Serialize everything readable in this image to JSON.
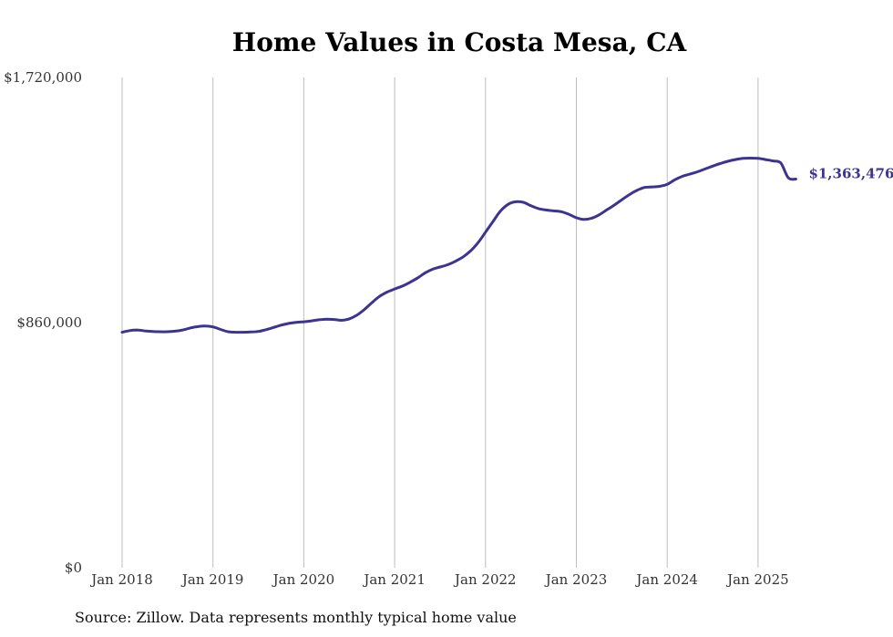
{
  "chart_data": {
    "type": "line",
    "title": "Home Values in Costa Mesa, CA",
    "xlabel": "",
    "ylabel": "",
    "x_ticks": [
      "Jan 2018",
      "Jan 2019",
      "Jan 2020",
      "Jan 2021",
      "Jan 2022",
      "Jan 2023",
      "Jan 2024",
      "Jan 2025"
    ],
    "y_ticks": [
      "$0",
      "$860,000",
      "$1,720,000"
    ],
    "ylim": [
      0,
      1720000
    ],
    "xlim": [
      "2018-01",
      "2025-06"
    ],
    "grid": "vertical",
    "line_color": "#3d3391",
    "end_label": "$1,363,476",
    "series": [
      {
        "x": [
          "2018-01",
          "2018-02",
          "2018-03",
          "2018-04",
          "2018-05",
          "2018-06",
          "2018-07",
          "2018-08",
          "2018-09",
          "2018-10",
          "2018-11",
          "2018-12",
          "2019-01",
          "2019-02",
          "2019-03",
          "2019-04",
          "2019-05",
          "2019-06",
          "2019-07",
          "2019-08",
          "2019-09",
          "2019-10",
          "2019-11",
          "2019-12",
          "2020-01",
          "2020-02",
          "2020-03",
          "2020-04",
          "2020-05",
          "2020-06",
          "2020-07",
          "2020-08",
          "2020-09",
          "2020-10",
          "2020-11",
          "2020-12",
          "2021-01",
          "2021-02",
          "2021-03",
          "2021-04",
          "2021-05",
          "2021-06",
          "2021-07",
          "2021-08",
          "2021-09",
          "2021-10",
          "2021-11",
          "2021-12",
          "2022-01",
          "2022-02",
          "2022-03",
          "2022-04",
          "2022-05",
          "2022-06",
          "2022-07",
          "2022-08",
          "2022-09",
          "2022-10",
          "2022-11",
          "2022-12",
          "2023-01",
          "2023-02",
          "2023-03",
          "2023-04",
          "2023-05",
          "2023-06",
          "2023-07",
          "2023-08",
          "2023-09",
          "2023-10",
          "2023-11",
          "2023-12",
          "2024-01",
          "2024-02",
          "2024-03",
          "2024-04",
          "2024-05",
          "2024-06",
          "2024-07",
          "2024-08",
          "2024-09",
          "2024-10",
          "2024-11",
          "2024-12",
          "2025-01",
          "2025-02",
          "2025-03",
          "2025-04",
          "2025-05",
          "2025-06"
        ],
        "values": [
          826000,
          832000,
          834000,
          831000,
          829000,
          828000,
          828000,
          830000,
          834000,
          841000,
          846000,
          848000,
          845000,
          836000,
          828000,
          826000,
          826000,
          827000,
          829000,
          835000,
          843000,
          851000,
          857000,
          861000,
          863000,
          866000,
          870000,
          872000,
          871000,
          868000,
          873000,
          886000,
          906000,
          930000,
          952000,
          967000,
          978000,
          988000,
          1001000,
          1016000,
          1034000,
          1047000,
          1055000,
          1063000,
          1075000,
          1090000,
          1111000,
          1140000,
          1177000,
          1215000,
          1252000,
          1275000,
          1284000,
          1282000,
          1270000,
          1260000,
          1255000,
          1252000,
          1249000,
          1240000,
          1228000,
          1222000,
          1226000,
          1238000,
          1255000,
          1272000,
          1291000,
          1309000,
          1324000,
          1334000,
          1336000,
          1338000,
          1345000,
          1361000,
          1373000,
          1381000,
          1389000,
          1399000,
          1409000,
          1418000,
          1426000,
          1432000,
          1436000,
          1437000,
          1436000,
          1432000,
          1427000,
          1420000,
          1368000,
          1363476
        ]
      }
    ]
  },
  "source": "Source: Zillow. Data represents monthly typical home value"
}
